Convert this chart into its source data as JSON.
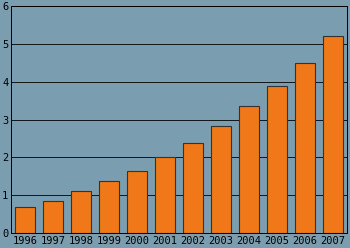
{
  "years": [
    1996,
    1997,
    1998,
    1999,
    2000,
    2001,
    2002,
    2003,
    2004,
    2005,
    2006,
    2007
  ],
  "values": [
    0.68,
    0.85,
    1.12,
    1.37,
    1.63,
    2.0,
    2.38,
    2.83,
    3.35,
    3.9,
    4.5,
    5.22
  ],
  "bar_color": "#f07818",
  "bar_edge_color": "#333333",
  "background_color": "#7a9db0",
  "ylim": [
    0,
    6
  ],
  "yticks": [
    0,
    1,
    2,
    3,
    4,
    5,
    6
  ],
  "tick_fontsize": 7.5,
  "bar_width": 0.72
}
